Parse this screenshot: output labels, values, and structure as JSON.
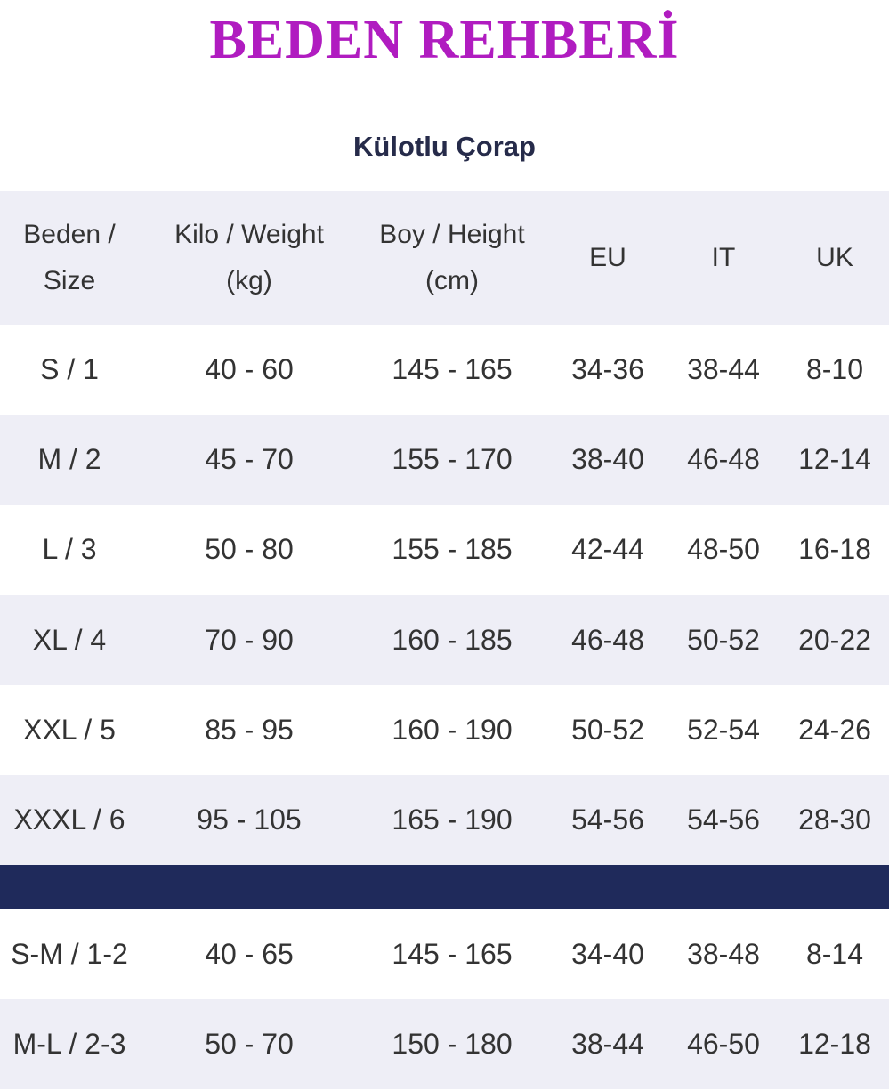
{
  "header": {
    "title": "BEDEN REHBERİ",
    "subtitle": "Külotlu Çorap"
  },
  "table": {
    "columns": [
      [
        "Beden /",
        "Size"
      ],
      [
        "Kilo / Weight",
        "(kg)"
      ],
      [
        "Boy / Height",
        "(cm)"
      ],
      [
        "EU"
      ],
      [
        "IT"
      ],
      [
        "UK"
      ]
    ],
    "rows": [
      [
        "S / 1",
        "40 - 60",
        "145 - 165",
        "34-36",
        "38-44",
        "8-10"
      ],
      [
        "M / 2",
        "45 - 70",
        "155 - 170",
        "38-40",
        "46-48",
        "12-14"
      ],
      [
        "L / 3",
        "50 - 80",
        "155 - 185",
        "42-44",
        "48-50",
        "16-18"
      ],
      [
        "XL / 4",
        "70 - 90",
        "160 - 185",
        "46-48",
        "50-52",
        "20-22"
      ],
      [
        "XXL / 5",
        "85 - 95",
        "160 - 190",
        "50-52",
        "52-54",
        "24-26"
      ],
      [
        "XXXL / 6",
        "95 - 105",
        "165 - 190",
        "54-56",
        "54-56",
        "28-30"
      ]
    ],
    "extra_rows": [
      [
        "S-M / 1-2",
        "40 - 65",
        "145 - 165",
        "34-40",
        "38-48",
        "8-14"
      ],
      [
        "M-L / 2-3",
        "50 - 70",
        "150 - 180",
        "38-44",
        "46-50",
        "12-18"
      ]
    ]
  }
}
